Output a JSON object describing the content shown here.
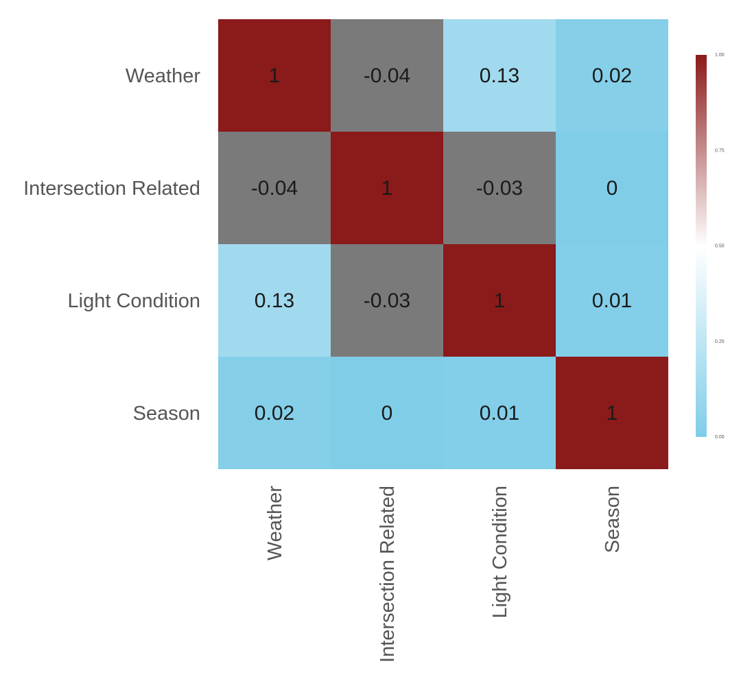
{
  "chart_data": {
    "type": "heatmap",
    "rows": [
      "Weather",
      "Intersection Related",
      "Light Condition",
      "Season"
    ],
    "columns": [
      "Weather",
      "Intersection Related",
      "Light Condition",
      "Season"
    ],
    "values": [
      [
        1,
        -0.04,
        0.13,
        0.02
      ],
      [
        -0.04,
        1,
        -0.03,
        0
      ],
      [
        0.13,
        -0.03,
        1,
        0.01
      ],
      [
        0.02,
        0,
        0.01,
        1
      ]
    ],
    "cell_labels": [
      [
        "1",
        "-0.04",
        "0.13",
        "0.02"
      ],
      [
        "-0.04",
        "1",
        "-0.03",
        "0"
      ],
      [
        "0.13",
        "-0.03",
        "1",
        "0.01"
      ],
      [
        "0.02",
        "0",
        "0.01",
        "1"
      ]
    ],
    "colorbar": {
      "range": [
        0,
        1
      ],
      "ticks": [
        "1.00",
        "0.75",
        "0.50",
        "0.25",
        "0.00"
      ],
      "tick_values": [
        1.0,
        0.75,
        0.5,
        0.25,
        0.0
      ]
    },
    "colors": {
      "low": "#80cde8",
      "mid": "#ffffff",
      "high": "#8b1a1a",
      "under": "#7a7a7a"
    },
    "grid": false,
    "legend": "colorbar-right"
  }
}
